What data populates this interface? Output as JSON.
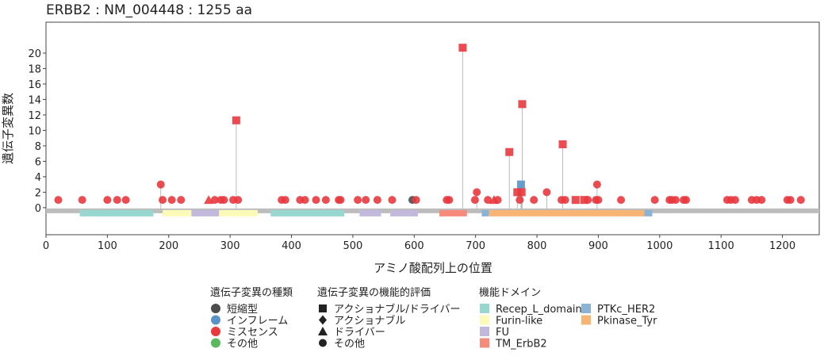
{
  "chart_data": {
    "type": "lollipop",
    "title": "ERBB2 : NM_004448 : 1255 aa",
    "xlabel": "アミノ酸配列上の位置",
    "ylabel": "遺伝子変異数",
    "xlim": [
      0,
      1260
    ],
    "ylim": [
      -3.5,
      24
    ],
    "x_ticks": [
      0,
      100,
      200,
      300,
      400,
      500,
      600,
      700,
      800,
      900,
      1000,
      1100,
      1200
    ],
    "y_ticks": [
      0,
      2,
      4,
      6,
      8,
      10,
      12,
      14,
      16,
      18,
      20
    ],
    "protein_length": 1255,
    "colors": {
      "missense": "#e8393f",
      "inframe": "#5a93c6",
      "truncating": "#4d4d4d",
      "other": "#5cb85c",
      "stem": "#bbbbbb",
      "backbone": "#bdbdbd",
      "Recep_L_domain": "#97d7cf",
      "Furin-like": "#fcfab9",
      "FU": "#c2b8dc",
      "TM_ErbB2": "#f68b7c",
      "PTKc_HER2": "#8bb4d4",
      "Pkinase_Tyr": "#f7b575"
    },
    "domains": [
      {
        "name": "Recep_L_domain",
        "start": 55,
        "end": 175
      },
      {
        "name": "Furin-like",
        "start": 190,
        "end": 237
      },
      {
        "name": "FU",
        "start": 237,
        "end": 282
      },
      {
        "name": "Furin-like",
        "start": 282,
        "end": 345
      },
      {
        "name": "Recep_L_domain",
        "start": 366,
        "end": 486
      },
      {
        "name": "FU",
        "start": 511,
        "end": 546
      },
      {
        "name": "FU",
        "start": 561,
        "end": 606
      },
      {
        "name": "TM_ErbB2",
        "start": 641,
        "end": 686
      },
      {
        "name": "PTKc_HER2",
        "start": 710,
        "end": 722
      },
      {
        "name": "Pkinase_Tyr",
        "start": 722,
        "end": 975
      },
      {
        "name": "PTKc_HER2",
        "start": 975,
        "end": 988
      }
    ],
    "mutations": [
      {
        "x": 20,
        "y": 1,
        "type": "missense",
        "eval": "other"
      },
      {
        "x": 59,
        "y": 1,
        "type": "missense",
        "eval": "other"
      },
      {
        "x": 100,
        "y": 1,
        "type": "missense",
        "eval": "other"
      },
      {
        "x": 116,
        "y": 1,
        "type": "missense",
        "eval": "other"
      },
      {
        "x": 130,
        "y": 1,
        "type": "missense",
        "eval": "other"
      },
      {
        "x": 187,
        "y": 3,
        "type": "missense",
        "eval": "other"
      },
      {
        "x": 190,
        "y": 1,
        "type": "missense",
        "eval": "other"
      },
      {
        "x": 205,
        "y": 1,
        "type": "missense",
        "eval": "other"
      },
      {
        "x": 220,
        "y": 1,
        "type": "missense",
        "eval": "other"
      },
      {
        "x": 265,
        "y": 1,
        "type": "missense",
        "eval": "driver"
      },
      {
        "x": 275,
        "y": 1,
        "type": "missense",
        "eval": "other"
      },
      {
        "x": 285,
        "y": 1,
        "type": "missense",
        "eval": "other"
      },
      {
        "x": 290,
        "y": 1,
        "type": "missense",
        "eval": "other"
      },
      {
        "x": 305,
        "y": 1,
        "type": "missense",
        "eval": "other"
      },
      {
        "x": 310,
        "y": 11.3,
        "type": "missense",
        "eval": "actionable_driver"
      },
      {
        "x": 313,
        "y": 1,
        "type": "missense",
        "eval": "other"
      },
      {
        "x": 384,
        "y": 1,
        "type": "missense",
        "eval": "other"
      },
      {
        "x": 390,
        "y": 1,
        "type": "missense",
        "eval": "other"
      },
      {
        "x": 414,
        "y": 1,
        "type": "missense",
        "eval": "other"
      },
      {
        "x": 422,
        "y": 1,
        "type": "missense",
        "eval": "other"
      },
      {
        "x": 440,
        "y": 1,
        "type": "missense",
        "eval": "other"
      },
      {
        "x": 456,
        "y": 1,
        "type": "missense",
        "eval": "other"
      },
      {
        "x": 477,
        "y": 1,
        "type": "missense",
        "eval": "other"
      },
      {
        "x": 480,
        "y": 1,
        "type": "missense",
        "eval": "other"
      },
      {
        "x": 508,
        "y": 1,
        "type": "missense",
        "eval": "other"
      },
      {
        "x": 521,
        "y": 1,
        "type": "missense",
        "eval": "other"
      },
      {
        "x": 540,
        "y": 1,
        "type": "missense",
        "eval": "other"
      },
      {
        "x": 564,
        "y": 1,
        "type": "missense",
        "eval": "other"
      },
      {
        "x": 597,
        "y": 1,
        "type": "truncating",
        "eval": "other"
      },
      {
        "x": 603,
        "y": 1,
        "type": "missense",
        "eval": "other"
      },
      {
        "x": 653,
        "y": 1,
        "type": "missense",
        "eval": "other"
      },
      {
        "x": 657,
        "y": 1,
        "type": "missense",
        "eval": "other"
      },
      {
        "x": 679,
        "y": 20.7,
        "type": "missense",
        "eval": "actionable_driver"
      },
      {
        "x": 699,
        "y": 1,
        "type": "missense",
        "eval": "other"
      },
      {
        "x": 702,
        "y": 2,
        "type": "missense",
        "eval": "other"
      },
      {
        "x": 720,
        "y": 1,
        "type": "missense",
        "eval": "other"
      },
      {
        "x": 730,
        "y": 1,
        "type": "missense",
        "eval": "driver"
      },
      {
        "x": 736,
        "y": 1,
        "type": "missense",
        "eval": "other"
      },
      {
        "x": 755,
        "y": 7.2,
        "type": "missense",
        "eval": "actionable_driver"
      },
      {
        "x": 768,
        "y": 2,
        "type": "missense",
        "eval": "actionable_driver"
      },
      {
        "x": 772,
        "y": 1,
        "type": "missense",
        "eval": "other"
      },
      {
        "x": 774,
        "y": 3,
        "type": "inframe",
        "eval": "actionable_driver"
      },
      {
        "x": 775,
        "y": 2,
        "type": "missense",
        "eval": "actionable_driver"
      },
      {
        "x": 776,
        "y": 13.4,
        "type": "missense",
        "eval": "actionable_driver"
      },
      {
        "x": 795,
        "y": 1,
        "type": "missense",
        "eval": "other"
      },
      {
        "x": 816,
        "y": 2,
        "type": "missense",
        "eval": "other"
      },
      {
        "x": 840,
        "y": 1,
        "type": "missense",
        "eval": "other"
      },
      {
        "x": 842,
        "y": 8.2,
        "type": "missense",
        "eval": "actionable_driver"
      },
      {
        "x": 846,
        "y": 1,
        "type": "missense",
        "eval": "other"
      },
      {
        "x": 863,
        "y": 1,
        "type": "missense",
        "eval": "actionable_driver"
      },
      {
        "x": 877,
        "y": 1,
        "type": "missense",
        "eval": "actionable_driver"
      },
      {
        "x": 883,
        "y": 1,
        "type": "missense",
        "eval": "other"
      },
      {
        "x": 896,
        "y": 1,
        "type": "missense",
        "eval": "other"
      },
      {
        "x": 898,
        "y": 3,
        "type": "missense",
        "eval": "other"
      },
      {
        "x": 900,
        "y": 1,
        "type": "missense",
        "eval": "other"
      },
      {
        "x": 937,
        "y": 1,
        "type": "missense",
        "eval": "other"
      },
      {
        "x": 992,
        "y": 1,
        "type": "missense",
        "eval": "other"
      },
      {
        "x": 1016,
        "y": 1,
        "type": "missense",
        "eval": "other"
      },
      {
        "x": 1020,
        "y": 1,
        "type": "missense",
        "eval": "other"
      },
      {
        "x": 1026,
        "y": 1,
        "type": "missense",
        "eval": "other"
      },
      {
        "x": 1039,
        "y": 1,
        "type": "missense",
        "eval": "other"
      },
      {
        "x": 1043,
        "y": 1,
        "type": "missense",
        "eval": "other"
      },
      {
        "x": 1110,
        "y": 1,
        "type": "missense",
        "eval": "other"
      },
      {
        "x": 1116,
        "y": 1,
        "type": "missense",
        "eval": "other"
      },
      {
        "x": 1123,
        "y": 1,
        "type": "missense",
        "eval": "other"
      },
      {
        "x": 1150,
        "y": 1,
        "type": "missense",
        "eval": "other"
      },
      {
        "x": 1158,
        "y": 1,
        "type": "missense",
        "eval": "other"
      },
      {
        "x": 1166,
        "y": 1,
        "type": "missense",
        "eval": "other"
      },
      {
        "x": 1208,
        "y": 1,
        "type": "missense",
        "eval": "other"
      },
      {
        "x": 1213,
        "y": 1,
        "type": "missense",
        "eval": "other"
      },
      {
        "x": 1230,
        "y": 1,
        "type": "missense",
        "eval": "other"
      }
    ],
    "legend": {
      "placement": "bottom",
      "groups": [
        {
          "title": "遺伝子変異の種類",
          "items": [
            {
              "label": "短縮型",
              "key": "truncating",
              "shape": "circle"
            },
            {
              "label": "インフレーム",
              "key": "inframe",
              "shape": "circle"
            },
            {
              "label": "ミスセンス",
              "key": "missense",
              "shape": "circle"
            },
            {
              "label": "その他",
              "key": "other",
              "shape": "circle"
            }
          ]
        },
        {
          "title": "遺伝子変異の機能的評価",
          "items": [
            {
              "label": "アクショナブル/ドライバー",
              "key": "actionable_driver",
              "shape": "square"
            },
            {
              "label": "アクショナブル",
              "key": "actionable",
              "shape": "diamond"
            },
            {
              "label": "ドライバー",
              "key": "driver",
              "shape": "triangle"
            },
            {
              "label": "その他",
              "key": "other",
              "shape": "circle"
            }
          ]
        },
        {
          "title": "機能ドメイン",
          "items": [
            {
              "label": "Recep_L_domain",
              "key": "Recep_L_domain",
              "shape": "rect"
            },
            {
              "label": "Furin-like",
              "key": "Furin-like",
              "shape": "rect"
            },
            {
              "label": "FU",
              "key": "FU",
              "shape": "rect"
            },
            {
              "label": "TM_ErbB2",
              "key": "TM_ErbB2",
              "shape": "rect"
            },
            {
              "label": "PTKc_HER2",
              "key": "PTKc_HER2",
              "shape": "rect"
            },
            {
              "label": "Pkinase_Tyr",
              "key": "Pkinase_Tyr",
              "shape": "rect"
            }
          ]
        }
      ]
    }
  }
}
